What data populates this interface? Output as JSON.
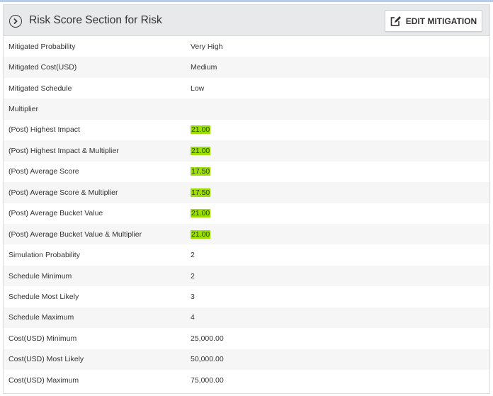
{
  "section": {
    "title": "Risk Score Section for Risk",
    "edit_button_label": "EDIT MITIGATION"
  },
  "colors": {
    "highlight": "#9be000",
    "header_bg": "#e8e9eb",
    "row_alt_bg": "#f6f6f7"
  },
  "icons": {
    "toggle": "chevron-right-circle-icon",
    "edit": "edit-pencil-icon"
  },
  "rows": [
    {
      "label": "Mitigated Probability",
      "value": "Very High",
      "highlight": false
    },
    {
      "label": "Mitigated Cost(USD)",
      "value": "Medium",
      "highlight": false
    },
    {
      "label": "Mitigated Schedule",
      "value": "Low",
      "highlight": false
    },
    {
      "label": "Multiplier",
      "value": "",
      "highlight": false
    },
    {
      "label": "(Post) Highest Impact",
      "value": "21.00",
      "highlight": true
    },
    {
      "label": "(Post) Highest Impact & Multiplier",
      "value": "21.00",
      "highlight": true
    },
    {
      "label": "(Post) Average Score",
      "value": "17.50",
      "highlight": true
    },
    {
      "label": "(Post) Average Score & Multiplier",
      "value": "17.50",
      "highlight": true
    },
    {
      "label": "(Post) Average Bucket Value",
      "value": "21.00",
      "highlight": true
    },
    {
      "label": "(Post) Average Bucket Value & Multiplier",
      "value": "21.00",
      "highlight": true
    },
    {
      "label": "Simulation Probability",
      "value": "2",
      "highlight": false
    },
    {
      "label": "Schedule Minimum",
      "value": "2",
      "highlight": false
    },
    {
      "label": "Schedule Most Likely",
      "value": "3",
      "highlight": false
    },
    {
      "label": "Schedule Maximum",
      "value": "4",
      "highlight": false
    },
    {
      "label": "Cost(USD) Minimum",
      "value": "25,000.00",
      "highlight": false
    },
    {
      "label": "Cost(USD) Most Likely",
      "value": "50,000.00",
      "highlight": false
    },
    {
      "label": "Cost(USD) Maximum",
      "value": "75,000.00",
      "highlight": false
    }
  ]
}
